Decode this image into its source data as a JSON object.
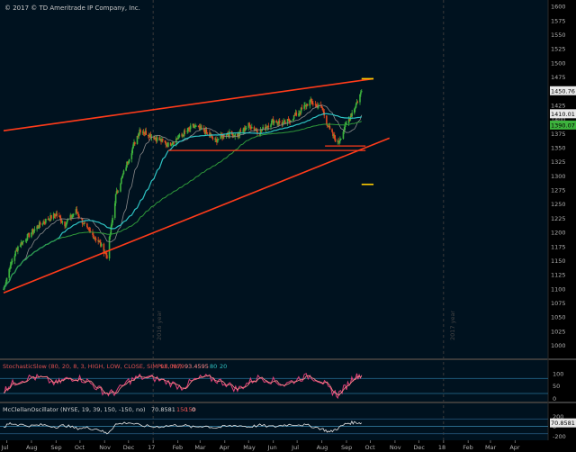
{
  "header": {
    "copyright": "© 2017 © TD Ameritrade IP Company, Inc."
  },
  "colors": {
    "bg": "#00101e",
    "plot_bg": "#00121f",
    "up": "#3db33d",
    "down": "#e0491f",
    "ma_fast": "#8a8a8a",
    "ma_mid": "#2ec4c4",
    "ma_slow": "#2f9a3a",
    "channel": "#ff3b1a",
    "target": "#ffcc00",
    "stoch_k": "#e0407a",
    "stoch_d": "#ff8a8a",
    "mco": "#e8e8e8",
    "axis_text": "#b0b0b0"
  },
  "chart_data": [
    {
      "type": "candlestick",
      "title": "",
      "xlabel": "",
      "ylabel": "",
      "ylim": [
        985,
        1605
      ],
      "xlim": [
        "2016-06-27",
        "2018-04-30"
      ],
      "x_ticks": [
        "Jul",
        "Aug",
        "Sep",
        "Oct",
        "Nov",
        "Dec",
        "17",
        "Feb",
        "Mar",
        "Apr",
        "May",
        "Jun",
        "Jul",
        "Aug",
        "Sep",
        "Oct",
        "Nov",
        "Dec",
        "18",
        "Feb",
        "Mar",
        "Apr"
      ],
      "y_ticks": [
        1000,
        1025,
        1050,
        1075,
        1100,
        1125,
        1150,
        1175,
        1200,
        1225,
        1250,
        1275,
        1300,
        1325,
        1350,
        1375,
        1400,
        1425,
        1450,
        1475,
        1500,
        1525,
        1550,
        1575,
        1600
      ],
      "price_markers": [
        {
          "label": "1450.76",
          "value": 1450.76,
          "color": "#ffffff"
        },
        {
          "label": "1410.01",
          "value": 1410.01,
          "color": "#ffffff"
        },
        {
          "label": "1390.07",
          "value": 1390.07,
          "color": "#3db33d"
        }
      ],
      "year_labels": [
        "2016 year",
        "2017 year"
      ],
      "series": [
        {
          "role": "candles",
          "x": [
            "2016-06-27",
            "2016-07-05",
            "2016-07-15",
            "2016-08-01",
            "2016-08-15",
            "2016-09-01",
            "2016-09-12",
            "2016-09-26",
            "2016-10-10",
            "2016-10-24",
            "2016-11-04",
            "2016-11-15",
            "2016-12-01",
            "2016-12-15",
            "2017-01-03",
            "2017-01-20",
            "2017-02-06",
            "2017-02-20",
            "2017-03-06",
            "2017-03-20",
            "2017-04-03",
            "2017-04-17",
            "2017-05-01",
            "2017-05-15",
            "2017-06-01",
            "2017-06-15",
            "2017-07-03",
            "2017-07-17",
            "2017-08-01",
            "2017-08-11",
            "2017-08-21",
            "2017-09-01",
            "2017-09-11",
            "2017-09-20"
          ],
          "close": [
            1100,
            1140,
            1175,
            1200,
            1218,
            1232,
            1215,
            1238,
            1205,
            1185,
            1158,
            1265,
            1330,
            1382,
            1368,
            1355,
            1372,
            1388,
            1380,
            1362,
            1375,
            1372,
            1390,
            1378,
            1398,
            1392,
            1412,
            1432,
            1420,
            1380,
            1358,
            1392,
            1420,
            1450
          ]
        },
        {
          "role": "channel-upper",
          "x": [
            "2016-06-27",
            "2017-10-05"
          ],
          "y": [
            1380,
            1472
          ]
        },
        {
          "role": "channel-lower",
          "x": [
            "2016-06-27",
            "2017-10-25"
          ],
          "y": [
            1093,
            1367
          ]
        },
        {
          "role": "support",
          "x": [
            "2017-01-20",
            "2017-09-25"
          ],
          "y": [
            1345,
            1345
          ]
        },
        {
          "role": "support",
          "x": [
            "2017-08-05",
            "2017-09-25"
          ],
          "y": [
            1353,
            1353
          ]
        },
        {
          "role": "target",
          "x": [
            "2017-09-20",
            "2017-10-05"
          ],
          "y": [
            1472,
            1472
          ]
        },
        {
          "role": "target",
          "x": [
            "2017-09-20",
            "2017-10-05"
          ],
          "y": [
            1285,
            1285
          ]
        }
      ]
    },
    {
      "type": "line",
      "title": "StochasticSlow (80, 20, 8, 3, HIGH, LOW, CLOSE, SIMPLE, No)",
      "legend_values": [
        "93.0079",
        "93.4595",
        "80",
        "20"
      ],
      "ylim": [
        -5,
        110
      ],
      "y_ticks": [
        100,
        50,
        0
      ],
      "levels": [
        80,
        20
      ],
      "series": [
        {
          "name": "",
          "values": [
            30,
            55,
            70,
            85,
            80,
            60,
            75,
            85,
            70,
            40,
            20,
            25,
            70,
            85,
            80,
            65,
            45,
            70,
            85,
            75,
            60,
            35,
            65,
            85,
            70,
            55,
            80,
            90,
            70,
            35,
            15,
            50,
            90,
            93
          ]
        }
      ]
    },
    {
      "type": "line",
      "title": "McClellanOscillator (NYSE, 19, 39, 150, -150, no)",
      "legend_values": [
        "70.8581",
        "150",
        "-150",
        "0"
      ],
      "ylim": [
        -250,
        250
      ],
      "y_ticks": [
        200,
        0,
        -200
      ],
      "last_label": "70.8581",
      "series": [
        {
          "name": "",
          "values": [
            -20,
            60,
            40,
            10,
            30,
            -10,
            20,
            -40,
            -30,
            -60,
            -150,
            40,
            80,
            20,
            -10,
            10,
            30,
            -20,
            10,
            -30,
            0,
            20,
            -10,
            20,
            -10,
            30,
            40,
            10,
            -50,
            -120,
            -40,
            60,
            80,
            71
          ]
        }
      ]
    }
  ]
}
